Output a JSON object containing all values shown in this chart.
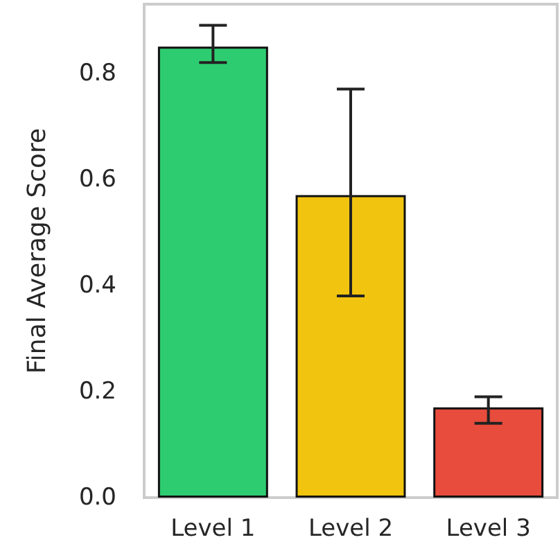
{
  "chart_data": {
    "type": "bar",
    "ylabel": "Final Average Score",
    "categories": [
      "Level 1",
      "Level 2",
      "Level 3"
    ],
    "values": [
      0.85,
      0.57,
      0.17
    ],
    "colors": [
      "#2ecc71",
      "#f1c40f",
      "#e74c3c"
    ],
    "errors": [
      [
        0.82,
        0.89
      ],
      [
        0.38,
        0.77
      ],
      [
        0.14,
        0.19
      ]
    ],
    "ylim": [
      0,
      0.93
    ],
    "yticks": [
      {
        "value": 0,
        "label": "0.0"
      },
      {
        "value": 0.2,
        "label": "0.2"
      },
      {
        "value": 0.4,
        "label": "0.4"
      },
      {
        "value": 0.6,
        "label": "0.6"
      },
      {
        "value": 0.8,
        "label": "0.8"
      }
    ],
    "grid": false
  }
}
